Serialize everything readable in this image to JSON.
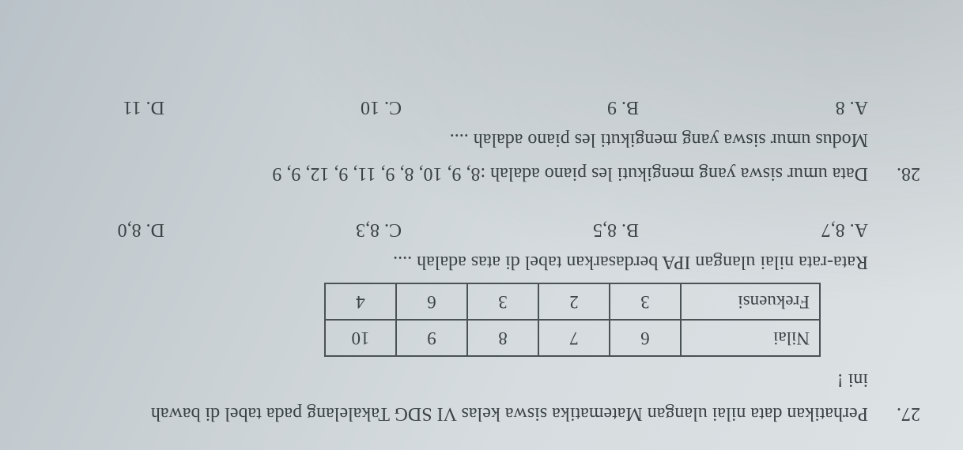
{
  "q27": {
    "number": "27.",
    "stem_line1": "Perhatikan data nilai ulangan Matematika siswa kelas VI SDG Takalelang  pada tabel di bawah",
    "stem_line2": "ini !",
    "table": {
      "row1_label": "Nilai",
      "row1": [
        "6",
        "7",
        "8",
        "9",
        "10"
      ],
      "row2_label": "Frekuensi",
      "row2": [
        "3",
        "2",
        "3",
        "6",
        "4"
      ]
    },
    "substem": "Rata-rata nilai ulangan IPA berdasarkan tabel di atas adalah ....",
    "opts": {
      "A": "A.  8,7",
      "B": "B. 8,5",
      "C": "C. 8,3",
      "D": "D. 8,0"
    }
  },
  "q28": {
    "number": "28.",
    "stem": "Data umur siswa yang mengikuti les piano adalah :8, 9, 10, 8, 9, 11, 9, 12, 9, 9",
    "substem": "Modus umur siswa yang mengikuti les piano adalah ....",
    "opts": {
      "A": "A.  8",
      "B": "B.  9",
      "C": "C. 10",
      "D": "D. 11"
    }
  }
}
